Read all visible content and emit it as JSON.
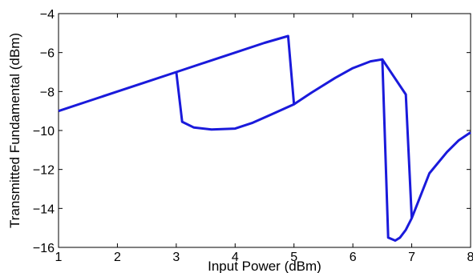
{
  "chart_data": {
    "type": "line",
    "title": "",
    "xlabel": "Input Power (dBm)",
    "ylabel": "Transmitted Fundamental (dBm)",
    "xlim": [
      1,
      8
    ],
    "ylim": [
      -16,
      -4
    ],
    "xticks": [
      1,
      2,
      3,
      4,
      5,
      6,
      7,
      8
    ],
    "yticks": [
      -16,
      -14,
      -12,
      -10,
      -8,
      -6,
      -4
    ],
    "grid": false,
    "legend": "none",
    "line_color": "#1a1adb",
    "series": [
      {
        "x": [
          1.0,
          1.5,
          2.0,
          2.5,
          3.0,
          3.5,
          4.0,
          4.5,
          4.9,
          5.0
        ],
        "y": [
          -9.0,
          -8.5,
          -8.0,
          -7.5,
          -7.0,
          -6.5,
          -6.0,
          -5.5,
          -5.15,
          -8.65
        ]
      },
      {
        "x": [
          3.0,
          3.1,
          3.3,
          3.6,
          4.0,
          4.3,
          4.6,
          5.0,
          5.3,
          5.7,
          6.0,
          6.3,
          6.5,
          6.6,
          6.72,
          6.8,
          6.9,
          7.0,
          7.3,
          7.6,
          7.8,
          8.0
        ],
        "y": [
          -7.0,
          -9.55,
          -9.85,
          -9.95,
          -9.9,
          -9.6,
          -9.2,
          -8.65,
          -8.05,
          -7.3,
          -6.8,
          -6.45,
          -6.35,
          -15.5,
          -15.65,
          -15.5,
          -15.1,
          -14.5,
          -12.2,
          -11.1,
          -10.5,
          -10.1
        ]
      },
      {
        "x": [
          6.5,
          6.9,
          7.0
        ],
        "y": [
          -6.35,
          -8.15,
          -14.5
        ]
      }
    ]
  }
}
